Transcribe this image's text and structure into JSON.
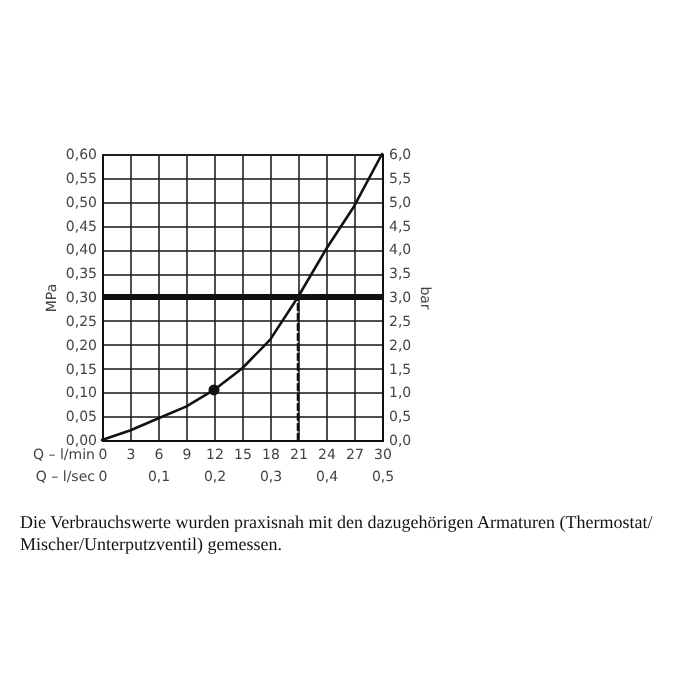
{
  "chart_data": {
    "type": "line",
    "xlabel": "Q – l/min",
    "x2label": "Q – l/sec",
    "ylabel": "MPa",
    "y2label": "bar",
    "xlim": [
      0,
      30
    ],
    "xticks": [
      0,
      3,
      6,
      9,
      12,
      15,
      18,
      21,
      24,
      27,
      30
    ],
    "x2lim": [
      0,
      0.5
    ],
    "x2ticks": [
      {
        "value": 0,
        "label": "0"
      },
      {
        "value": 0.1,
        "label": "0,1"
      },
      {
        "value": 0.2,
        "label": "0,2"
      },
      {
        "value": 0.3,
        "label": "0,3"
      },
      {
        "value": 0.4,
        "label": "0,4"
      },
      {
        "value": 0.5,
        "label": "0,5"
      }
    ],
    "ylim": [
      0,
      0.6
    ],
    "yticks": [
      {
        "value": 0,
        "label": "0,00"
      },
      {
        "value": 0.05,
        "label": "0,05"
      },
      {
        "value": 0.1,
        "label": "0,10"
      },
      {
        "value": 0.15,
        "label": "0,15"
      },
      {
        "value": 0.2,
        "label": "0,20"
      },
      {
        "value": 0.25,
        "label": "0,25"
      },
      {
        "value": 0.3,
        "label": "0,30"
      },
      {
        "value": 0.35,
        "label": "0,35"
      },
      {
        "value": 0.4,
        "label": "0,40"
      },
      {
        "value": 0.45,
        "label": "0,45"
      },
      {
        "value": 0.5,
        "label": "0,50"
      },
      {
        "value": 0.55,
        "label": "0,55"
      },
      {
        "value": 0.6,
        "label": "0,60"
      }
    ],
    "y2lim": [
      0,
      6
    ],
    "y2ticks": [
      {
        "value": 0,
        "label": "0,0"
      },
      {
        "value": 0.5,
        "label": "0,5"
      },
      {
        "value": 1,
        "label": "1,0"
      },
      {
        "value": 1.5,
        "label": "1,5"
      },
      {
        "value": 2,
        "label": "2,0"
      },
      {
        "value": 2.5,
        "label": "2,5"
      },
      {
        "value": 3,
        "label": "3,0"
      },
      {
        "value": 3.5,
        "label": "3,5"
      },
      {
        "value": 4,
        "label": "4,0"
      },
      {
        "value": 4.5,
        "label": "4,5"
      },
      {
        "value": 5,
        "label": "5,0"
      },
      {
        "value": 5.5,
        "label": "5,5"
      },
      {
        "value": 6,
        "label": "6,0"
      }
    ],
    "grid": true,
    "series": [
      {
        "type": "line",
        "color": "#111111",
        "line_style": "solid",
        "x": [
          0,
          3,
          6,
          9,
          12,
          15,
          18,
          21,
          24,
          27,
          30
        ],
        "values": [
          0,
          0.02,
          0.045,
          0.07,
          0.105,
          0.15,
          0.21,
          0.3,
          0.4,
          0.49,
          0.6
        ]
      },
      {
        "type": "line",
        "color": "#111111",
        "line_style": "dashed",
        "x": [
          21,
          21
        ],
        "values": [
          0,
          0.3
        ]
      },
      {
        "type": "scatter",
        "color": "#111111",
        "marker": "circle",
        "x": [
          12
        ],
        "values": [
          0.105
        ]
      }
    ],
    "ref_lines": [
      {
        "axis": "y",
        "value": 0.3,
        "color": "#111111",
        "line_style": "solid"
      }
    ],
    "annotations": [
      "Die Verbrauchswerte wurden praxisnah mit den dazugehörigen Armaturen (Thermostat/ Mischer/Unterputzventil) gemessen."
    ]
  }
}
